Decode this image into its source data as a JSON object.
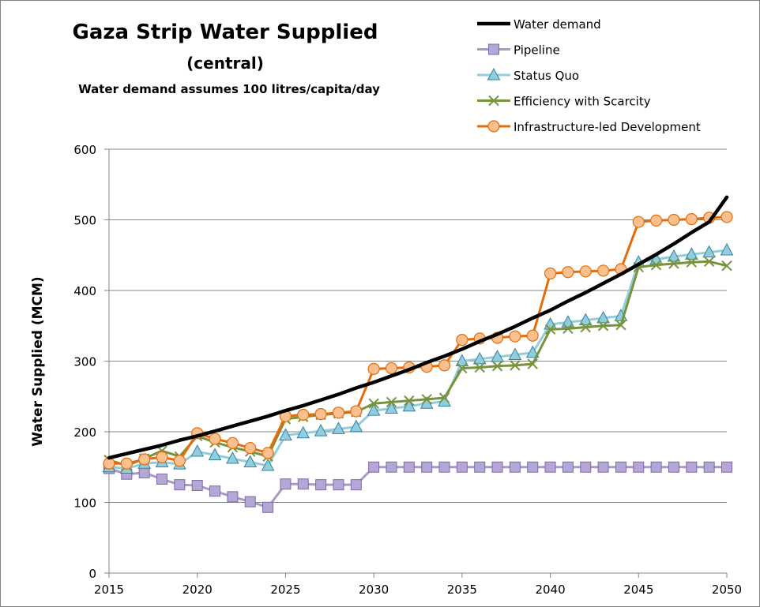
{
  "chart_data": {
    "type": "line",
    "title": "Gaza Strip Water Supplied",
    "subtitle": "(central)",
    "note": "Water demand assumes 100 litres/capita/day",
    "xlabel": "",
    "ylabel": "Water Supplied (MCM)",
    "xlim": [
      2015,
      2050
    ],
    "ylim": [
      0,
      600
    ],
    "xticks": [
      2015,
      2020,
      2025,
      2030,
      2035,
      2040,
      2045,
      2050
    ],
    "yticks": [
      0,
      100,
      200,
      300,
      400,
      500,
      600
    ],
    "grid": "horizontal",
    "legend_position": "top-right",
    "x": [
      2015,
      2016,
      2017,
      2018,
      2019,
      2020,
      2021,
      2022,
      2023,
      2024,
      2025,
      2026,
      2027,
      2028,
      2029,
      2030,
      2031,
      2032,
      2033,
      2034,
      2035,
      2036,
      2037,
      2038,
      2039,
      2040,
      2041,
      2042,
      2043,
      2044,
      2045,
      2046,
      2047,
      2048,
      2049,
      2050
    ],
    "series": [
      {
        "name": "Water demand",
        "color": "#000000",
        "marker": "none",
        "values": [
          163,
          169,
          175,
          181,
          188,
          194,
          201,
          208,
          215,
          222,
          230,
          237,
          245,
          253,
          262,
          270,
          279,
          288,
          298,
          307,
          317,
          328,
          338,
          349,
          361,
          372,
          385,
          397,
          410,
          423,
          437,
          451,
          466,
          482,
          497,
          532
        ]
      },
      {
        "name": "Pipeline",
        "color": "#A89BC3",
        "marker": "square",
        "values": [
          148,
          140,
          142,
          133,
          125,
          124,
          116,
          108,
          101,
          93,
          126,
          126,
          125,
          125,
          125,
          150,
          150,
          150,
          150,
          150,
          150,
          150,
          150,
          150,
          150,
          150,
          150,
          150,
          150,
          150,
          150,
          150,
          150,
          150,
          150,
          150
        ]
      },
      {
        "name": "Status Quo",
        "color": "#93CDDD",
        "marker": "triangle",
        "values": [
          150,
          148,
          155,
          157,
          154,
          172,
          167,
          162,
          157,
          152,
          195,
          198,
          201,
          204,
          207,
          230,
          233,
          236,
          240,
          243,
          300,
          303,
          306,
          309,
          312,
          352,
          355,
          358,
          361,
          364,
          440,
          444,
          448,
          451,
          454,
          457
        ]
      },
      {
        "name": "Efficiency with Scarcity",
        "color": "#77933C",
        "marker": "x",
        "values": [
          160,
          152,
          162,
          173,
          165,
          194,
          185,
          178,
          172,
          165,
          218,
          221,
          224,
          226,
          228,
          240,
          242,
          244,
          246,
          248,
          290,
          291,
          293,
          294,
          296,
          345,
          346,
          348,
          350,
          351,
          433,
          436,
          438,
          440,
          441,
          435
        ]
      },
      {
        "name": "Infrastructure-led Development",
        "color": "#E46C0A",
        "marker": "circle",
        "values": [
          155,
          155,
          161,
          164,
          159,
          198,
          190,
          184,
          177,
          170,
          222,
          224,
          225,
          227,
          229,
          289,
          290,
          291,
          292,
          294,
          330,
          332,
          333,
          335,
          336,
          424,
          426,
          427,
          428,
          430,
          497,
          499,
          500,
          501,
          503,
          504
        ]
      }
    ]
  }
}
